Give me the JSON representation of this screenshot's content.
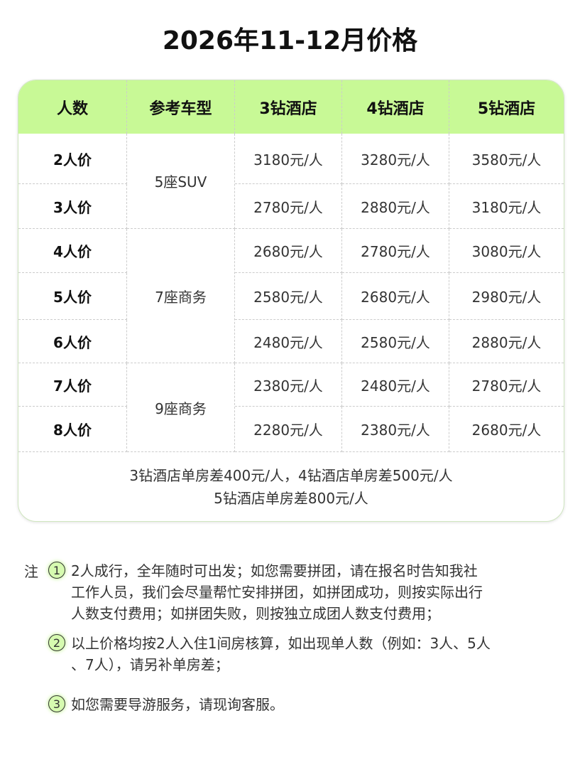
{
  "title": "2026年11-12月价格",
  "table": {
    "headers": [
      "人数",
      "参考车型",
      "3钻酒店",
      "4钻酒店",
      "5钻酒店"
    ],
    "rows": [
      {
        "people": "2人价",
        "p3": "3180元/人",
        "p4": "3280元/人",
        "p5": "3580元/人"
      },
      {
        "people": "3人价",
        "p3": "2780元/人",
        "p4": "2880元/人",
        "p5": "3180元/人"
      },
      {
        "people": "4人价",
        "p3": "2680元/人",
        "p4": "2780元/人",
        "p5": "3080元/人"
      },
      {
        "people": "5人价",
        "p3": "2580元/人",
        "p4": "2680元/人",
        "p5": "2980元/人"
      },
      {
        "people": "6人价",
        "p3": "2480元/人",
        "p4": "2580元/人",
        "p5": "2880元/人"
      },
      {
        "people": "7人价",
        "p3": "2380元/人",
        "p4": "2480元/人",
        "p5": "2780元/人"
      },
      {
        "people": "8人价",
        "p3": "2280元/人",
        "p4": "2380元/人",
        "p5": "2680元/人"
      }
    ],
    "vehicles": [
      "5座SUV",
      "7座商务",
      "9座商务"
    ],
    "footer": [
      "3钻酒店单房差400元/人，4钻酒店单房差500元/人",
      "5钻酒店单房差800元/人"
    ]
  },
  "notes": {
    "label": "注",
    "items": [
      {
        "num": "1",
        "lines": [
          "2人成行，全年随时可出发；如您需要拼团，请在报名时告知我社",
          "工作人员，我们会尽量帮忙安排拼团，如拼团成功，则按实际出行",
          "人数支付费用；如拼团失败，则按独立成团人数支付费用；"
        ]
      },
      {
        "num": "2",
        "lines": [
          "以上价格均按2人入住1间房核算，如出现单人数（例如：3人、5人",
          "、7人），请另补单房差；"
        ]
      },
      {
        "num": "3",
        "lines": [
          "如您需要导游服务，请现询客服。"
        ]
      }
    ]
  },
  "colors": {
    "header_bg": "#c8f996",
    "badge_bg": "#d6fbb0"
  }
}
